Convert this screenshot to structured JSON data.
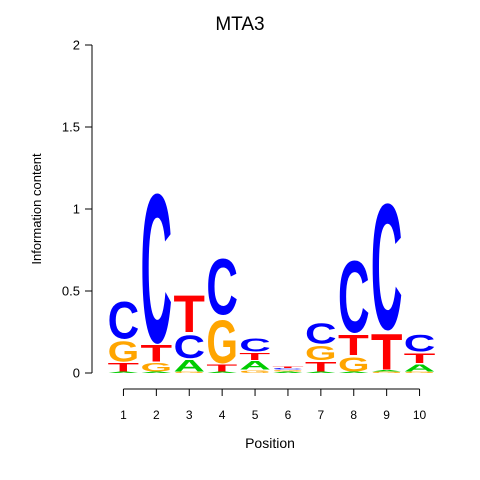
{
  "chart_data": {
    "type": "sequence-logo",
    "title": "MTA3",
    "xlabel": "Position",
    "ylabel": "Information content",
    "ylim": [
      0,
      2
    ],
    "yticks": [
      {
        "value": 0,
        "label": "0"
      },
      {
        "value": 0.5,
        "label": "0.5"
      },
      {
        "value": 1,
        "label": "1"
      },
      {
        "value": 1.5,
        "label": "1.5"
      },
      {
        "value": 2,
        "label": "2"
      }
    ],
    "positions": [
      "1",
      "2",
      "3",
      "4",
      "5",
      "6",
      "7",
      "8",
      "9",
      "10"
    ],
    "colors": {
      "A": "#00cc00",
      "C": "#0000ff",
      "G": "#ffa500",
      "T": "#ff0000"
    },
    "columns": [
      {
        "position": "1",
        "stack": [
          {
            "base": "A",
            "height": 0.01
          },
          {
            "base": "T",
            "height": 0.06
          },
          {
            "base": "G",
            "height": 0.14
          },
          {
            "base": "C",
            "height": 0.26
          }
        ]
      },
      {
        "position": "2",
        "stack": [
          {
            "base": "A",
            "height": 0.01
          },
          {
            "base": "G",
            "height": 0.06
          },
          {
            "base": "T",
            "height": 0.12
          },
          {
            "base": "C",
            "height": 1.04
          }
        ]
      },
      {
        "position": "3",
        "stack": [
          {
            "base": "G",
            "height": 0.01
          },
          {
            "base": "A",
            "height": 0.08
          },
          {
            "base": "C",
            "height": 0.16
          },
          {
            "base": "T",
            "height": 0.26
          }
        ]
      },
      {
        "position": "4",
        "stack": [
          {
            "base": "A",
            "height": 0.01
          },
          {
            "base": "T",
            "height": 0.05
          },
          {
            "base": "G",
            "height": 0.3
          },
          {
            "base": "C",
            "height": 0.39
          }
        ]
      },
      {
        "position": "5",
        "stack": [
          {
            "base": "G",
            "height": 0.02
          },
          {
            "base": "A",
            "height": 0.06
          },
          {
            "base": "T",
            "height": 0.05
          },
          {
            "base": "C",
            "height": 0.09
          }
        ]
      },
      {
        "position": "6",
        "stack": [
          {
            "base": "A",
            "height": 0.01
          },
          {
            "base": "G",
            "height": 0.01
          },
          {
            "base": "C",
            "height": 0.01
          },
          {
            "base": "T",
            "height": 0.01
          }
        ]
      },
      {
        "position": "7",
        "stack": [
          {
            "base": "A",
            "height": 0.01
          },
          {
            "base": "T",
            "height": 0.07
          },
          {
            "base": "G",
            "height": 0.1
          },
          {
            "base": "C",
            "height": 0.14
          }
        ]
      },
      {
        "position": "8",
        "stack": [
          {
            "base": "A",
            "height": 0.01
          },
          {
            "base": "G",
            "height": 0.1
          },
          {
            "base": "T",
            "height": 0.14
          },
          {
            "base": "C",
            "height": 0.5
          }
        ]
      },
      {
        "position": "9",
        "stack": [
          {
            "base": "G",
            "height": 0.01
          },
          {
            "base": "A",
            "height": 0.01
          },
          {
            "base": "T",
            "height": 0.25
          },
          {
            "base": "C",
            "height": 0.88
          }
        ]
      },
      {
        "position": "10",
        "stack": [
          {
            "base": "G",
            "height": 0.01
          },
          {
            "base": "A",
            "height": 0.05
          },
          {
            "base": "T",
            "height": 0.07
          },
          {
            "base": "C",
            "height": 0.12
          }
        ]
      }
    ]
  }
}
